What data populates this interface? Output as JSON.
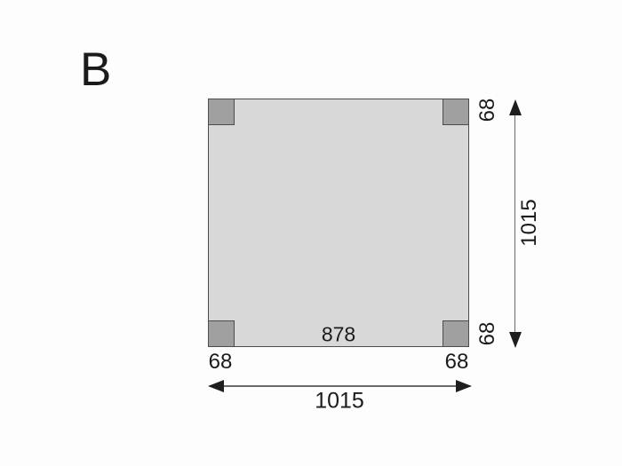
{
  "labels": {
    "variant": "B",
    "inner_span": "878",
    "post_depth_top_right": "68",
    "post_depth_bottom_right": "68",
    "post_width_bottom_left": "68",
    "post_width_bottom_right": "68",
    "overall_height": "1015",
    "overall_width": "1015"
  },
  "colors": {
    "plan_fill": "#d8d8d8",
    "post_fill": "#a0a0a0",
    "outline": "#4c4c4c",
    "dimension_line": "#6a6a6a",
    "arrow": "#1e1e1e",
    "text": "#1b1b1b",
    "background": "#fdfdfd"
  }
}
